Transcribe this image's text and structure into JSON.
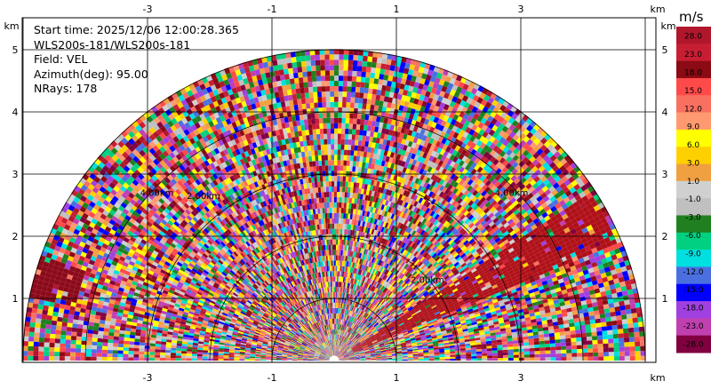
{
  "info": {
    "start_time": "Start time: 2025/12/06 12:00:28.365",
    "station": "WLS200s-181/WLS200s-181",
    "field": "Field: VEL",
    "azimuth": "Azimuth(deg): 95.00",
    "nrays": "NRays: 178"
  },
  "axes": {
    "unit": "km",
    "x_ticks": [
      "-3",
      "-1",
      "1",
      "3"
    ],
    "y_ticks": [
      "1",
      "2",
      "3",
      "4",
      "5"
    ],
    "ring_labels": [
      "2.00km",
      "4.00km"
    ]
  },
  "colorbar": {
    "unit": "m/s",
    "labels": [
      "28.0",
      "23.0",
      "18.0",
      "15.0",
      "12.0",
      "9.0",
      "6.0",
      "3.0",
      "1.0",
      "-1.0",
      "-3.0",
      "-6.0",
      "-9.0",
      "-12.0",
      "-15.0",
      "-18.0",
      "-23.0",
      "-28.0"
    ],
    "colors": [
      "#b0172c",
      "#c81e34",
      "#8b0a13",
      "#ff4a4a",
      "#f87060",
      "#ff9a70",
      "#ffff00",
      "#ffd000",
      "#f0a040",
      "#d0d0d0",
      "#c0c0c0",
      "#208020",
      "#00d080",
      "#00e0e0",
      "#4a70e0",
      "#0000ff",
      "#a040e0",
      "#c040b0",
      "#800040"
    ]
  }
}
